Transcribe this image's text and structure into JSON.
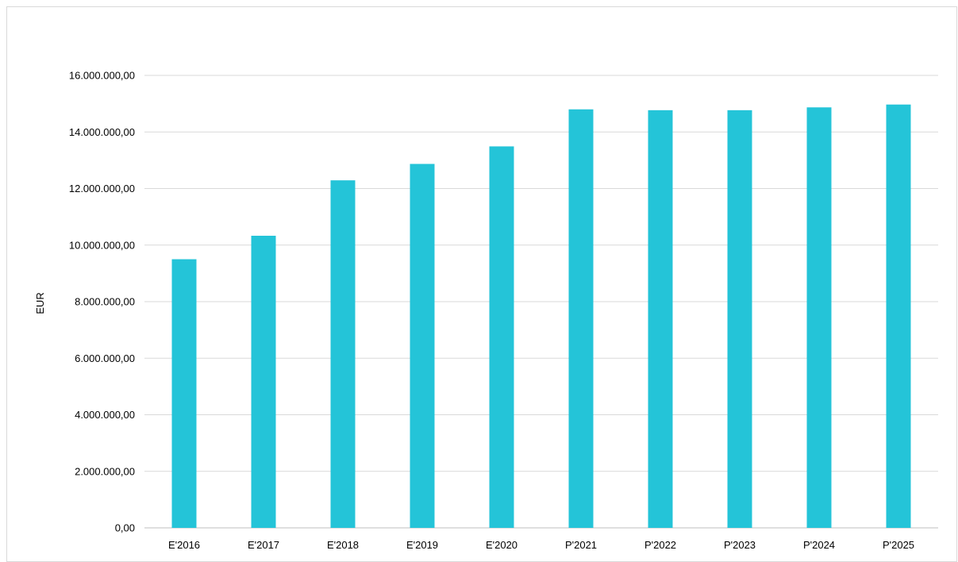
{
  "chart_data": {
    "type": "bar",
    "title": "",
    "xlabel": "",
    "ylabel": "EUR",
    "categories": [
      "E'2016",
      "E'2017",
      "E'2018",
      "E'2019",
      "E'2020",
      "P'2021",
      "P'2022",
      "P'2023",
      "P'2024",
      "P'2025"
    ],
    "values": [
      9500000,
      10330000,
      12290000,
      12870000,
      13490000,
      14800000,
      14770000,
      14770000,
      14870000,
      14970000
    ],
    "ylim": [
      0,
      16000000
    ],
    "yticks": [
      0,
      2000000,
      4000000,
      6000000,
      8000000,
      10000000,
      12000000,
      14000000,
      16000000
    ],
    "ytick_labels": [
      "0,00",
      "2.000.000,00",
      "4.000.000,00",
      "6.000.000,00",
      "8.000.000,00",
      "10.000.000,00",
      "12.000.000,00",
      "14.000.000,00",
      "16.000.000,00"
    ],
    "grid": true,
    "legend": "none",
    "colors": {
      "bar": "#24c4d8",
      "grid": "#d9d9d9",
      "axis": "#bfbfbf",
      "text": "#000000"
    }
  }
}
